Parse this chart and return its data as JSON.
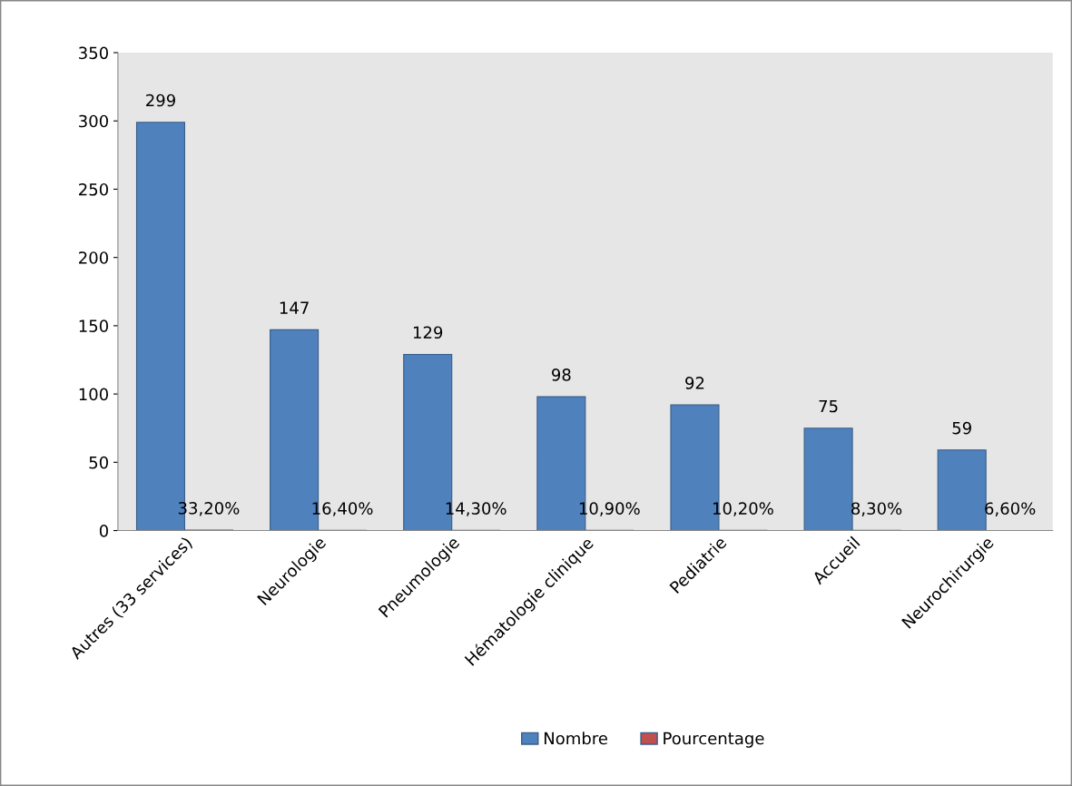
{
  "chart_data": {
    "type": "bar",
    "categories": [
      "Autres (33 services)",
      "Neurologie",
      "Pneumologie",
      "Hématologie clinique",
      "Pediatrie",
      "Accueil",
      "Neurochirurgie"
    ],
    "series": [
      {
        "name": "Nombre",
        "color": "#4f81bd",
        "values": [
          299,
          147,
          129,
          98,
          92,
          75,
          59
        ],
        "value_labels": [
          "299",
          "147",
          "129",
          "98",
          "92",
          "75",
          "59"
        ]
      },
      {
        "name": "Pourcentage",
        "color": "#c0504d",
        "values": [
          0.332,
          0.164,
          0.143,
          0.109,
          0.102,
          0.083,
          0.066
        ],
        "value_labels": [
          "33,20%",
          "16,40%",
          "14,30%",
          "10,90%",
          "10,20%",
          "8,30%",
          "6,60%"
        ]
      }
    ],
    "ylim": [
      0,
      350
    ],
    "yticks": [
      0,
      50,
      100,
      150,
      200,
      250,
      300,
      350
    ],
    "grid": false,
    "legend": "bottom"
  }
}
